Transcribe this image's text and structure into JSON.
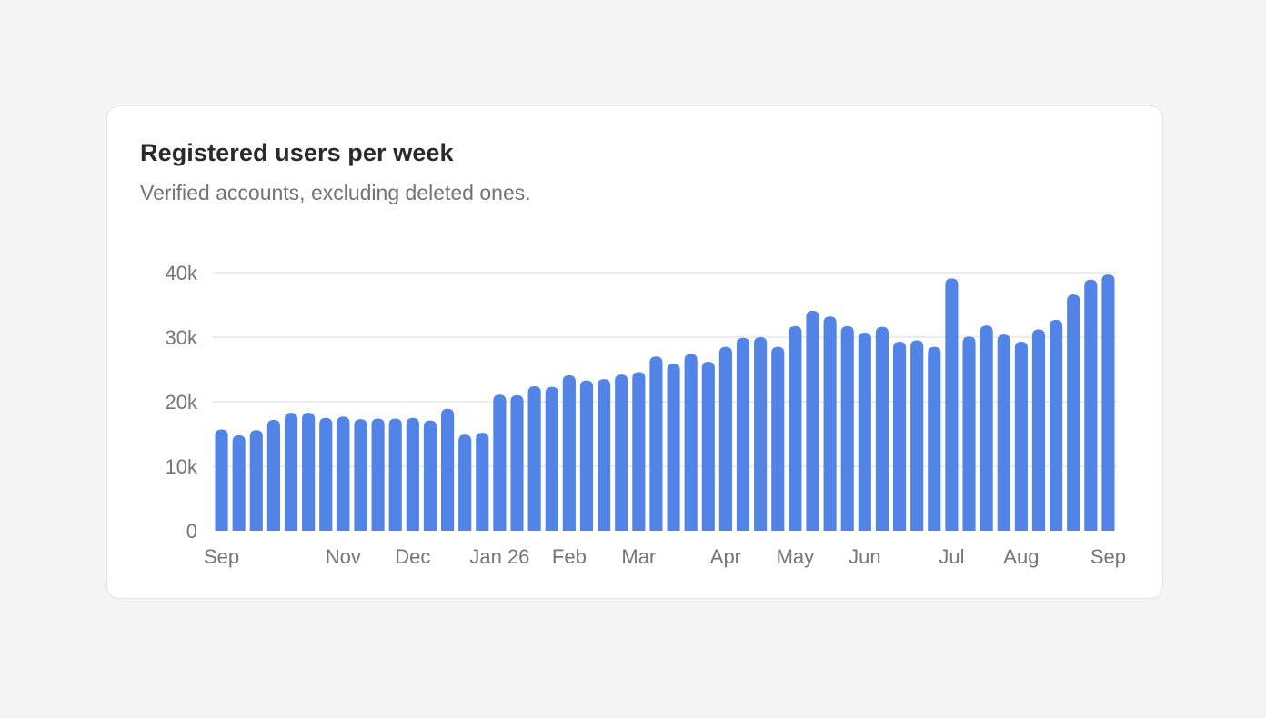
{
  "title": "Registered users per week",
  "subtitle": "Verified accounts, excluding deleted ones.",
  "colors": {
    "background": "#f4f4f4",
    "card": "#ffffff",
    "bar": "#5184e6",
    "grid": "#e6e6e6",
    "text_muted": "#767676",
    "title": "#2a2a2a"
  },
  "chart_data": {
    "type": "bar",
    "title": "Registered users per week",
    "subtitle": "Verified accounts, excluding deleted ones.",
    "xlabel": "",
    "ylabel": "",
    "ylim": [
      0,
      40000
    ],
    "grid": true,
    "legend": "none",
    "y_ticks": [
      {
        "value": 0,
        "label": "0"
      },
      {
        "value": 10000,
        "label": "10k"
      },
      {
        "value": 20000,
        "label": "20k"
      },
      {
        "value": 30000,
        "label": "30k"
      },
      {
        "value": 40000,
        "label": "40k"
      }
    ],
    "x_ticks": [
      {
        "index": 0,
        "label": "Sep"
      },
      {
        "index": 7,
        "label": "Nov"
      },
      {
        "index": 11,
        "label": "Dec"
      },
      {
        "index": 16,
        "label": "Jan 26"
      },
      {
        "index": 20,
        "label": "Feb"
      },
      {
        "index": 24,
        "label": "Mar"
      },
      {
        "index": 29,
        "label": "Apr"
      },
      {
        "index": 33,
        "label": "May"
      },
      {
        "index": 37,
        "label": "Jun"
      },
      {
        "index": 42,
        "label": "Jul"
      },
      {
        "index": 46,
        "label": "Aug"
      },
      {
        "index": 51,
        "label": "Sep"
      }
    ],
    "values": [
      15700,
      14800,
      15600,
      17200,
      18300,
      18300,
      17500,
      17700,
      17300,
      17400,
      17400,
      17500,
      17100,
      18900,
      14900,
      15200,
      21100,
      21000,
      22400,
      22300,
      24100,
      23300,
      23500,
      24200,
      24600,
      27000,
      25900,
      27400,
      26200,
      28500,
      29900,
      30000,
      28500,
      31700,
      34100,
      33200,
      31700,
      30700,
      31600,
      29300,
      29500,
      28500,
      39100,
      30100,
      31800,
      30400,
      29300,
      31200,
      32700,
      36600,
      38900,
      39700
    ]
  }
}
